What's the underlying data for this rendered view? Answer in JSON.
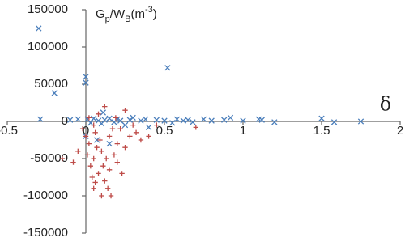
{
  "chart_data": {
    "type": "scatter",
    "ylabel": [
      "G",
      "p",
      "/W",
      "B",
      "(m",
      "-3",
      ")"
    ],
    "xlabel": "δ",
    "xlim": [
      -0.5,
      2
    ],
    "xticks": [
      -0.5,
      0,
      0.5,
      1,
      1.5,
      2
    ],
    "ylim": [
      -150000,
      150000
    ],
    "yticks": [
      -150000,
      -100000,
      -50000,
      0,
      50000,
      100000,
      150000
    ],
    "grid": false,
    "series": [
      {
        "color": "#4a7ebb",
        "marker": "x",
        "x": [
          -0.3,
          -0.29,
          -0.2,
          -0.1,
          -0.05,
          0,
          0,
          0.01,
          0.03,
          0.05,
          0.08,
          0.1,
          0.12,
          0.15,
          0.18,
          0.2,
          0.22,
          0.25,
          0.28,
          0.3,
          0.35,
          0.38,
          0.4,
          0.45,
          0.5,
          0.52,
          0.55,
          0.58,
          0.62,
          0.65,
          0.68,
          0.75,
          0.8,
          0.88,
          0.92,
          1.0,
          1.1,
          1.12,
          1.2,
          1.5,
          1.58,
          1.75,
          0.07,
          0.15,
          0.0,
          0.11
        ],
        "values": [
          125000,
          3000,
          38000,
          2000,
          3000,
          60000,
          52000,
          3000,
          -2000,
          4000,
          1000,
          -3000,
          2000,
          4000,
          -1000,
          3000,
          1000,
          -5000,
          2000,
          5000,
          1000,
          3000,
          -8000,
          2000,
          1000,
          72000,
          -2000,
          3000,
          1000,
          2000,
          -1000,
          3000,
          1000,
          2000,
          5000,
          1000,
          3000,
          2000,
          -1000,
          4000,
          -1000,
          0,
          -25000,
          -30000,
          -20000,
          12000
        ]
      },
      {
        "color": "#be4b48",
        "marker": "plus",
        "x": [
          -0.02,
          0,
          -0.05,
          -0.08,
          0.02,
          0.03,
          0.05,
          0.05,
          0.08,
          0.1,
          0.1,
          0.12,
          0.15,
          0.15,
          0.18,
          0.2,
          0.2,
          0.22,
          0.25,
          0.25,
          0.28,
          0.3,
          0.32,
          0.35,
          0.05,
          0.08,
          0.12,
          0.02,
          0.06,
          0.09,
          0.13,
          0.17,
          0.04,
          0.11,
          0.14,
          0.07,
          -0.15,
          0.4,
          0.45,
          0.7,
          0.01,
          0.19,
          0.23,
          0.16,
          0.06
        ],
        "values": [
          -10000,
          -20000,
          -40000,
          -55000,
          -30000,
          -60000,
          -50000,
          -90000,
          -70000,
          -40000,
          -100000,
          -80000,
          -65000,
          -20000,
          -45000,
          -30000,
          -55000,
          -10000,
          -35000,
          15000,
          -20000,
          -5000,
          -15000,
          -25000,
          -5000,
          10000,
          20000,
          5000,
          -15000,
          -25000,
          -50000,
          -10000,
          -75000,
          -60000,
          -90000,
          -35000,
          -50000,
          -20000,
          -5000,
          -8000,
          -45000,
          5000,
          -70000,
          -100000,
          -82000
        ]
      }
    ]
  }
}
